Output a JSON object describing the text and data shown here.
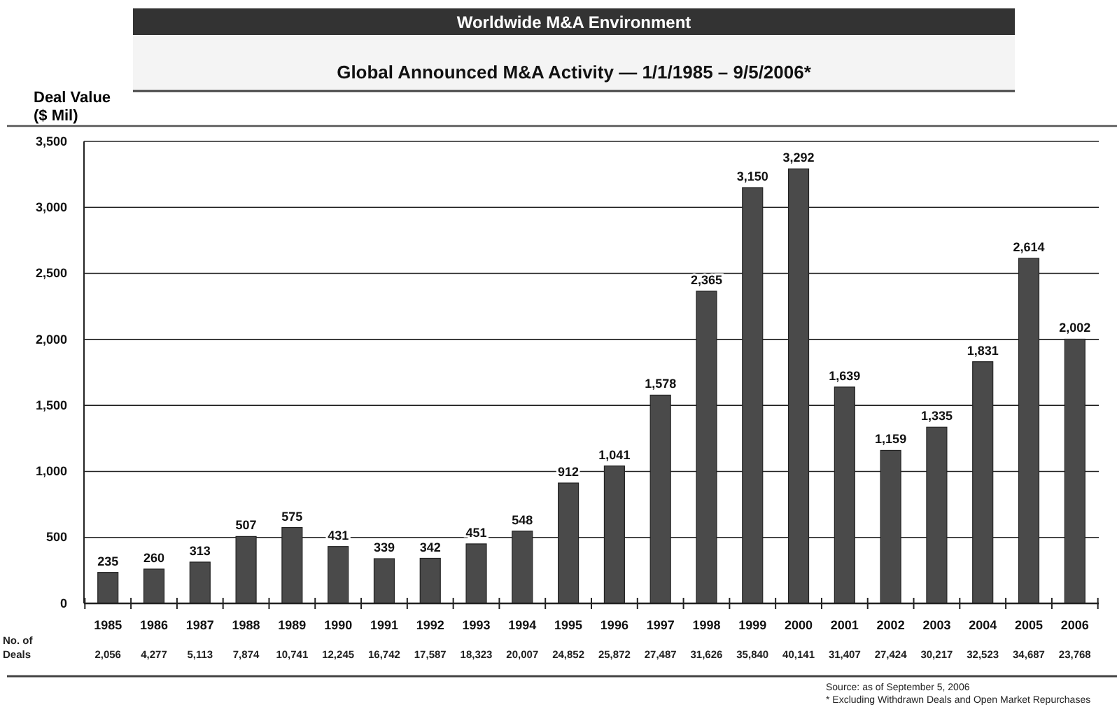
{
  "chart_data": {
    "type": "bar",
    "title": "Worldwide M&A Environment",
    "subtitle": "Global Announced M&A Activity — 1/1/1985 – 9/5/2006*",
    "ylabel": "Deal Value ($ Mil)",
    "categories": [
      "1985",
      "1986",
      "1987",
      "1988",
      "1989",
      "1990",
      "1991",
      "1992",
      "1993",
      "1994",
      "1995",
      "1996",
      "1997",
      "1998",
      "1999",
      "2000",
      "2001",
      "2002",
      "2003",
      "2004",
      "2005",
      "2006"
    ],
    "values": [
      235,
      260,
      313,
      507,
      575,
      431,
      339,
      342,
      451,
      548,
      912,
      1041,
      1578,
      2365,
      3150,
      3292,
      1639,
      1159,
      1335,
      1831,
      2614,
      2002
    ],
    "value_labels": [
      "235",
      "260",
      "313",
      "507",
      "575",
      "431",
      "339",
      "342",
      "451",
      "548",
      "912",
      "1,041",
      "1,578",
      "2,365",
      "3,150",
      "3,292",
      "1,639",
      "1,159",
      "1,335",
      "1,831",
      "2,614",
      "2,002"
    ],
    "color": "#4a4a4a",
    "ylim": [
      0,
      3500
    ],
    "yticks": [
      {
        "value": 0,
        "label": "0"
      },
      {
        "value": 500,
        "label": "500"
      },
      {
        "value": 1000,
        "label": "1,000"
      },
      {
        "value": 1500,
        "label": "1,500"
      },
      {
        "value": 2000,
        "label": "2,000"
      },
      {
        "value": 2500,
        "label": "2,500"
      },
      {
        "value": 3000,
        "label": "3,000"
      },
      {
        "value": 3500,
        "label": "3,500"
      }
    ],
    "grid": "y",
    "annotations": [
      "No. of Deals",
      "2,056",
      "4,277",
      "5,113",
      "7,874",
      "10,741",
      "12,245",
      "16,742",
      "17,587",
      "18,323",
      "20,007",
      "24,852",
      "25,872",
      "27,487",
      "31,626",
      "35,840",
      "40,141",
      "31,407",
      "27,424",
      "30,217",
      "32,523",
      "34,687",
      "23,768",
      "Source: as of September 5, 2006",
      "* Excluding Withdrawn Deals and Open Market Repurchases"
    ]
  }
}
